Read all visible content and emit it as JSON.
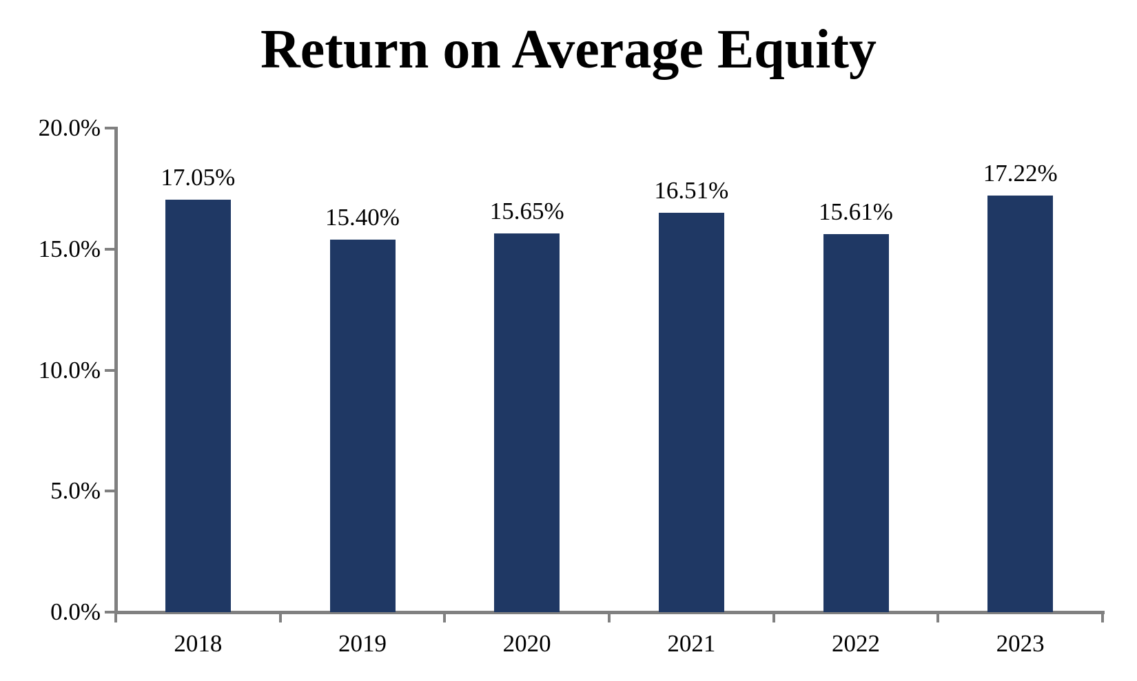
{
  "chart_data": {
    "type": "bar",
    "title": "Return on Average Equity",
    "categories": [
      "2018",
      "2019",
      "2020",
      "2021",
      "2022",
      "2023"
    ],
    "values": [
      17.05,
      15.4,
      15.65,
      16.51,
      15.61,
      17.22
    ],
    "value_labels": [
      "17.05%",
      "15.40%",
      "15.65%",
      "16.51%",
      "15.61%",
      "17.22%"
    ],
    "ylim": [
      0,
      20
    ],
    "ytick_step": 5,
    "ytick_labels": [
      "0.0%",
      "5.0%",
      "10.0%",
      "15.0%",
      "20.0%"
    ],
    "bar_color": "#1F3864",
    "axis_color": "#808080",
    "text_color": "#000000",
    "grid": false,
    "legend": "none"
  }
}
